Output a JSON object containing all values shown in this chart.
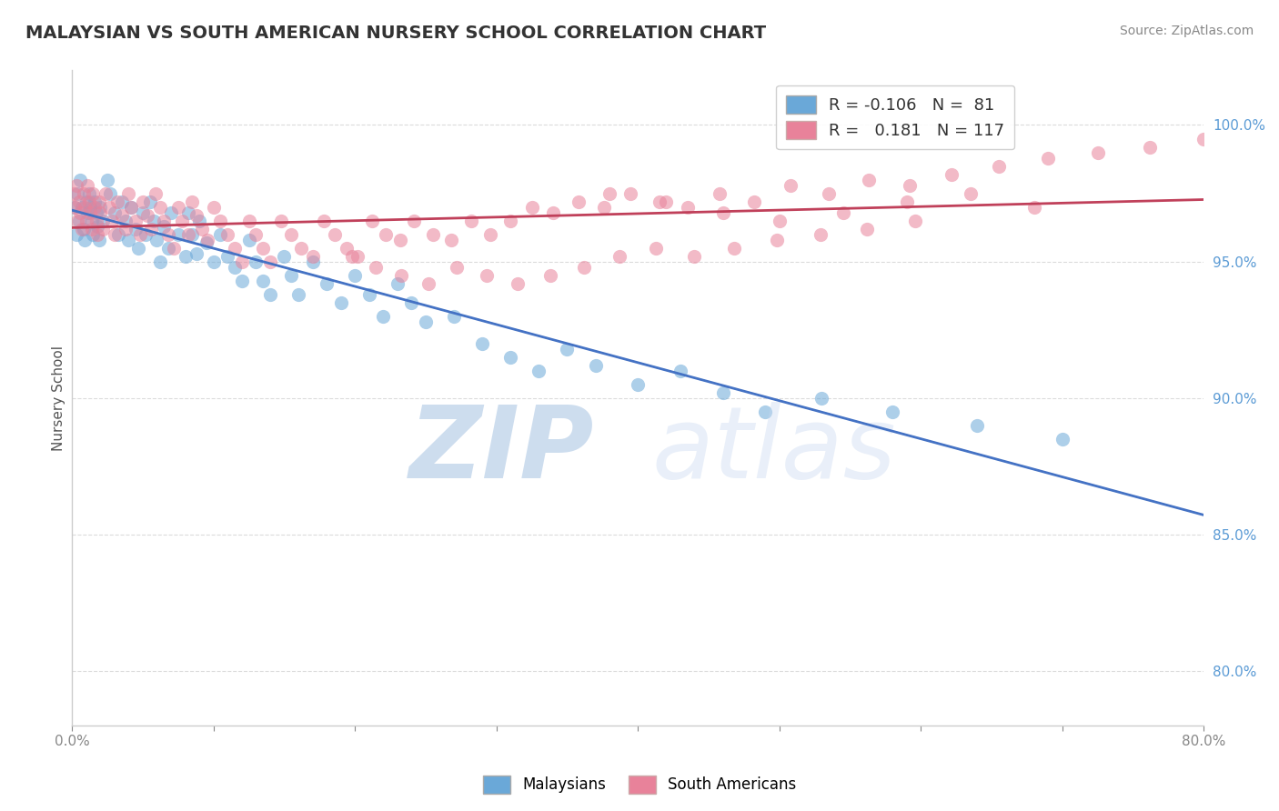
{
  "title": "MALAYSIAN VS SOUTH AMERICAN NURSERY SCHOOL CORRELATION CHART",
  "source": "Source: ZipAtlas.com",
  "ylabel": "Nursery School",
  "ytick_labels": [
    "100.0%",
    "95.0%",
    "90.0%",
    "85.0%",
    "80.0%"
  ],
  "ytick_values": [
    1.0,
    0.95,
    0.9,
    0.85,
    0.8
  ],
  "xlim": [
    0.0,
    0.8
  ],
  "ylim": [
    0.78,
    1.02
  ],
  "r_malaysian": -0.106,
  "n_malaysian": 81,
  "r_south_american": 0.181,
  "n_south_american": 117,
  "blue_color": "#6aa8d8",
  "pink_color": "#e8829a",
  "blue_line_color": "#4472c4",
  "pink_line_color": "#c0405a",
  "dot_alpha": 0.55,
  "dot_size": 120,
  "background_color": "#ffffff",
  "grid_color": "#cccccc",
  "watermark_color": "#d0dff0",
  "malaysian_x": [
    0.002,
    0.003,
    0.004,
    0.005,
    0.006,
    0.007,
    0.008,
    0.009,
    0.01,
    0.011,
    0.012,
    0.013,
    0.014,
    0.015,
    0.016,
    0.017,
    0.018,
    0.019,
    0.02,
    0.022,
    0.025,
    0.027,
    0.03,
    0.033,
    0.035,
    0.038,
    0.04,
    0.042,
    0.045,
    0.047,
    0.05,
    0.052,
    0.055,
    0.058,
    0.06,
    0.062,
    0.065,
    0.068,
    0.07,
    0.075,
    0.08,
    0.082,
    0.085,
    0.088,
    0.09,
    0.095,
    0.1,
    0.105,
    0.11,
    0.115,
    0.12,
    0.125,
    0.13,
    0.135,
    0.14,
    0.15,
    0.155,
    0.16,
    0.17,
    0.18,
    0.19,
    0.2,
    0.21,
    0.22,
    0.23,
    0.24,
    0.25,
    0.27,
    0.29,
    0.31,
    0.33,
    0.35,
    0.37,
    0.4,
    0.43,
    0.46,
    0.49,
    0.53,
    0.58,
    0.64,
    0.7
  ],
  "malaysian_y": [
    0.97,
    0.96,
    0.975,
    0.965,
    0.98,
    0.97,
    0.962,
    0.958,
    0.972,
    0.968,
    0.975,
    0.97,
    0.965,
    0.96,
    0.972,
    0.968,
    0.963,
    0.958,
    0.97,
    0.965,
    0.98,
    0.975,
    0.968,
    0.96,
    0.972,
    0.965,
    0.958,
    0.97,
    0.962,
    0.955,
    0.968,
    0.96,
    0.972,
    0.965,
    0.958,
    0.95,
    0.963,
    0.955,
    0.968,
    0.96,
    0.952,
    0.968,
    0.96,
    0.953,
    0.965,
    0.957,
    0.95,
    0.96,
    0.952,
    0.948,
    0.943,
    0.958,
    0.95,
    0.943,
    0.938,
    0.952,
    0.945,
    0.938,
    0.95,
    0.942,
    0.935,
    0.945,
    0.938,
    0.93,
    0.942,
    0.935,
    0.928,
    0.93,
    0.92,
    0.915,
    0.91,
    0.918,
    0.912,
    0.905,
    0.91,
    0.902,
    0.895,
    0.9,
    0.895,
    0.89,
    0.885
  ],
  "south_american_x": [
    0.001,
    0.002,
    0.003,
    0.004,
    0.005,
    0.006,
    0.007,
    0.008,
    0.009,
    0.01,
    0.011,
    0.012,
    0.013,
    0.014,
    0.015,
    0.016,
    0.017,
    0.018,
    0.019,
    0.02,
    0.022,
    0.024,
    0.026,
    0.028,
    0.03,
    0.032,
    0.035,
    0.038,
    0.04,
    0.042,
    0.045,
    0.048,
    0.05,
    0.053,
    0.056,
    0.059,
    0.062,
    0.065,
    0.068,
    0.072,
    0.075,
    0.078,
    0.082,
    0.085,
    0.088,
    0.092,
    0.096,
    0.1,
    0.105,
    0.11,
    0.115,
    0.12,
    0.125,
    0.13,
    0.135,
    0.14,
    0.148,
    0.155,
    0.162,
    0.17,
    0.178,
    0.186,
    0.194,
    0.202,
    0.212,
    0.222,
    0.232,
    0.242,
    0.255,
    0.268,
    0.282,
    0.296,
    0.31,
    0.325,
    0.34,
    0.358,
    0.376,
    0.395,
    0.415,
    0.435,
    0.458,
    0.482,
    0.508,
    0.535,
    0.563,
    0.592,
    0.622,
    0.655,
    0.69,
    0.725,
    0.762,
    0.8,
    0.38,
    0.42,
    0.46,
    0.5,
    0.545,
    0.59,
    0.635,
    0.68,
    0.198,
    0.215,
    0.233,
    0.252,
    0.272,
    0.293,
    0.315,
    0.338,
    0.362,
    0.387,
    0.413,
    0.44,
    0.468,
    0.498,
    0.529,
    0.562,
    0.596
  ],
  "south_american_y": [
    0.975,
    0.97,
    0.978,
    0.965,
    0.972,
    0.968,
    0.962,
    0.975,
    0.97,
    0.965,
    0.978,
    0.972,
    0.968,
    0.962,
    0.975,
    0.97,
    0.965,
    0.96,
    0.972,
    0.968,
    0.962,
    0.975,
    0.97,
    0.965,
    0.96,
    0.972,
    0.967,
    0.962,
    0.975,
    0.97,
    0.965,
    0.96,
    0.972,
    0.967,
    0.962,
    0.975,
    0.97,
    0.965,
    0.96,
    0.955,
    0.97,
    0.965,
    0.96,
    0.972,
    0.967,
    0.962,
    0.958,
    0.97,
    0.965,
    0.96,
    0.955,
    0.95,
    0.965,
    0.96,
    0.955,
    0.95,
    0.965,
    0.96,
    0.955,
    0.952,
    0.965,
    0.96,
    0.955,
    0.952,
    0.965,
    0.96,
    0.958,
    0.965,
    0.96,
    0.958,
    0.965,
    0.96,
    0.965,
    0.97,
    0.968,
    0.972,
    0.97,
    0.975,
    0.972,
    0.97,
    0.975,
    0.972,
    0.978,
    0.975,
    0.98,
    0.978,
    0.982,
    0.985,
    0.988,
    0.99,
    0.992,
    0.995,
    0.975,
    0.972,
    0.968,
    0.965,
    0.968,
    0.972,
    0.975,
    0.97,
    0.952,
    0.948,
    0.945,
    0.942,
    0.948,
    0.945,
    0.942,
    0.945,
    0.948,
    0.952,
    0.955,
    0.952,
    0.955,
    0.958,
    0.96,
    0.962,
    0.965
  ]
}
